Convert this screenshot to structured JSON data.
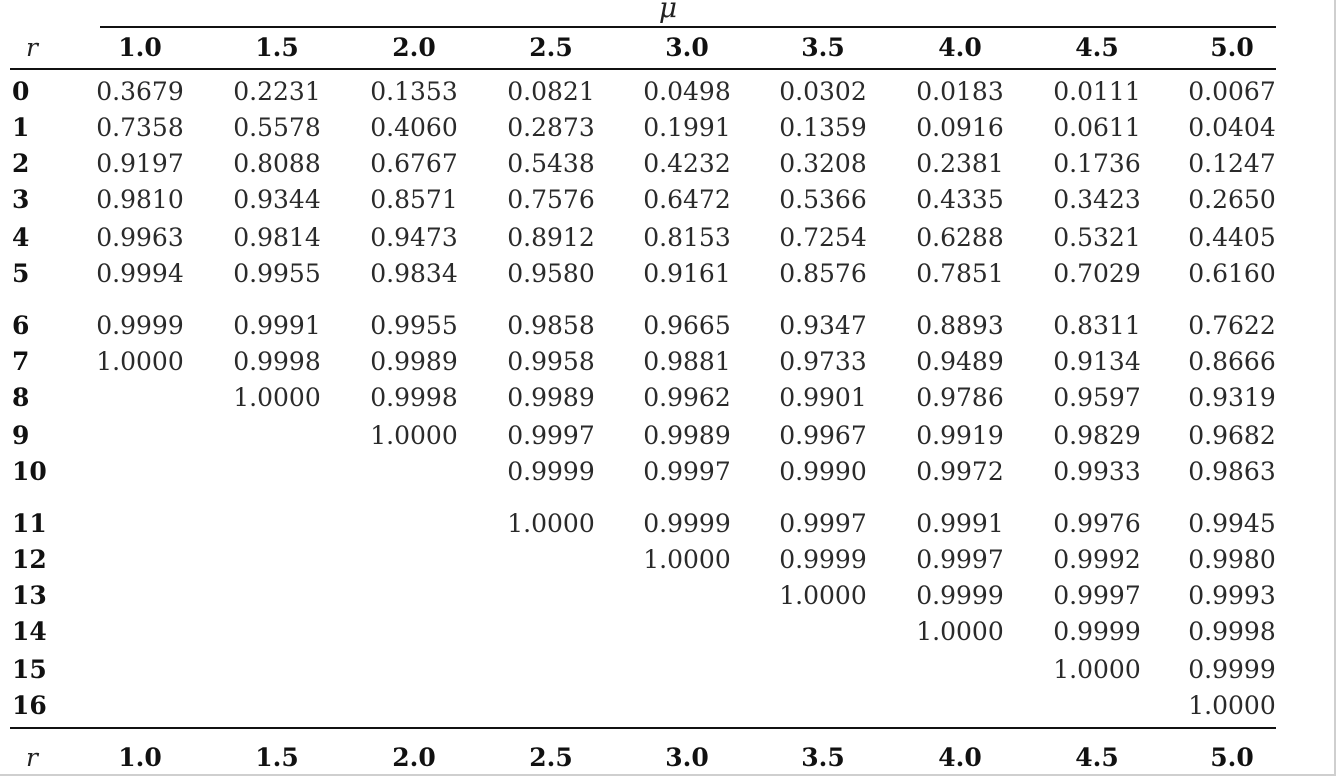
{
  "table": {
    "mu_symbol": "μ",
    "r_symbol": "r",
    "columns": [
      "1.0",
      "1.5",
      "2.0",
      "2.5",
      "3.0",
      "3.5",
      "4.0",
      "4.5",
      "5.0"
    ],
    "rows": [
      {
        "r": "0",
        "values": [
          "0.3679",
          "0.2231",
          "0.1353",
          "0.0821",
          "0.0498",
          "0.0302",
          "0.0183",
          "0.0111",
          "0.0067"
        ]
      },
      {
        "r": "1",
        "values": [
          "0.7358",
          "0.5578",
          "0.4060",
          "0.2873",
          "0.1991",
          "0.1359",
          "0.0916",
          "0.0611",
          "0.0404"
        ]
      },
      {
        "r": "2",
        "values": [
          "0.9197",
          "0.8088",
          "0.6767",
          "0.5438",
          "0.4232",
          "0.3208",
          "0.2381",
          "0.1736",
          "0.1247"
        ]
      },
      {
        "r": "3",
        "values": [
          "0.9810",
          "0.9344",
          "0.8571",
          "0.7576",
          "0.6472",
          "0.5366",
          "0.4335",
          "0.3423",
          "0.2650"
        ]
      },
      {
        "r": "4",
        "values": [
          "0.9963",
          "0.9814",
          "0.9473",
          "0.8912",
          "0.8153",
          "0.7254",
          "0.6288",
          "0.5321",
          "0.4405"
        ]
      },
      {
        "r": "5",
        "values": [
          "0.9994",
          "0.9955",
          "0.9834",
          "0.9580",
          "0.9161",
          "0.8576",
          "0.7851",
          "0.7029",
          "0.6160"
        ]
      },
      {
        "r": "6",
        "values": [
          "0.9999",
          "0.9991",
          "0.9955",
          "0.9858",
          "0.9665",
          "0.9347",
          "0.8893",
          "0.8311",
          "0.7622"
        ]
      },
      {
        "r": "7",
        "values": [
          "1.0000",
          "0.9998",
          "0.9989",
          "0.9958",
          "0.9881",
          "0.9733",
          "0.9489",
          "0.9134",
          "0.8666"
        ]
      },
      {
        "r": "8",
        "values": [
          "",
          "1.0000",
          "0.9998",
          "0.9989",
          "0.9962",
          "0.9901",
          "0.9786",
          "0.9597",
          "0.9319"
        ]
      },
      {
        "r": "9",
        "values": [
          "",
          "",
          "1.0000",
          "0.9997",
          "0.9989",
          "0.9967",
          "0.9919",
          "0.9829",
          "0.9682"
        ]
      },
      {
        "r": "10",
        "values": [
          "",
          "",
          "",
          "0.9999",
          "0.9997",
          "0.9990",
          "0.9972",
          "0.9933",
          "0.9863"
        ]
      },
      {
        "r": "11",
        "values": [
          "",
          "",
          "",
          "1.0000",
          "0.9999",
          "0.9997",
          "0.9991",
          "0.9976",
          "0.9945"
        ]
      },
      {
        "r": "12",
        "values": [
          "",
          "",
          "",
          "",
          "1.0000",
          "0.9999",
          "0.9997",
          "0.9992",
          "0.9980"
        ]
      },
      {
        "r": "13",
        "values": [
          "",
          "",
          "",
          "",
          "",
          "1.0000",
          "0.9999",
          "0.9997",
          "0.9993"
        ]
      },
      {
        "r": "14",
        "values": [
          "",
          "",
          "",
          "",
          "",
          "",
          "1.0000",
          "0.9999",
          "0.9998"
        ]
      },
      {
        "r": "15",
        "values": [
          "",
          "",
          "",
          "",
          "",
          "",
          "",
          "1.0000",
          "0.9999"
        ]
      },
      {
        "r": "16",
        "values": [
          "",
          "",
          "",
          "",
          "",
          "",
          "",
          "",
          "1.0000"
        ]
      }
    ]
  }
}
